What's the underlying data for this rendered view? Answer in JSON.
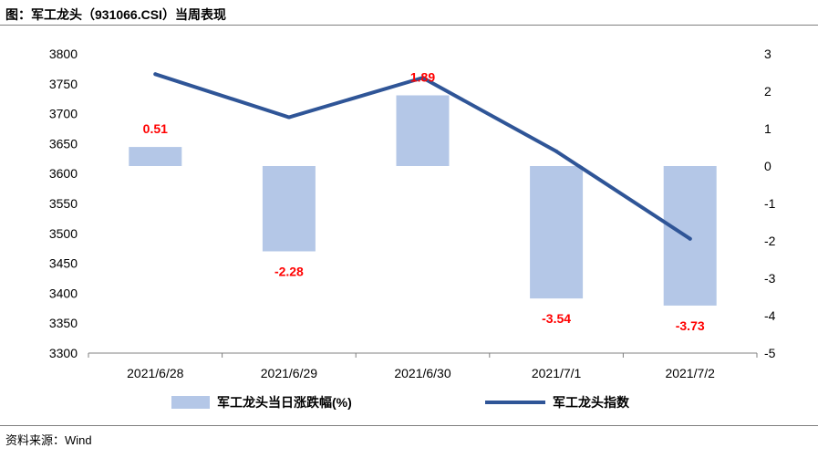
{
  "title": "图：军工龙头（931066.CSI）当周表现",
  "source": "资料来源：Wind",
  "chart_data": {
    "type": "bar+line",
    "categories": [
      "2021/6/28",
      "2021/6/29",
      "2021/6/30",
      "2021/7/1",
      "2021/7/2"
    ],
    "series": [
      {
        "name": "军工龙头当日涨跌幅(%)",
        "type": "bar",
        "axis": "right",
        "values": [
          0.51,
          -2.28,
          1.89,
          -3.54,
          -3.73
        ],
        "labels": [
          "0.51",
          "-2.28",
          "1.89",
          "-3.54",
          "-3.73"
        ],
        "color": "#b4c7e7"
      },
      {
        "name": "军工龙头指数",
        "type": "line",
        "axis": "left",
        "values": [
          3766,
          3694,
          3760,
          3637,
          3491
        ],
        "color": "#2f5597"
      }
    ],
    "left_axis": {
      "min": 3300,
      "max": 3800,
      "step": 50,
      "ticks": [
        "3800",
        "3750",
        "3700",
        "3650",
        "3600",
        "3550",
        "3500",
        "3450",
        "3400",
        "3350",
        "3300"
      ]
    },
    "right_axis": {
      "min": -5,
      "max": 3,
      "step": 1,
      "ticks": [
        "3",
        "2",
        "1",
        "0",
        "-1",
        "-2",
        "-3",
        "-4",
        "-5"
      ]
    },
    "legend_position": "bottom",
    "grid": false
  }
}
